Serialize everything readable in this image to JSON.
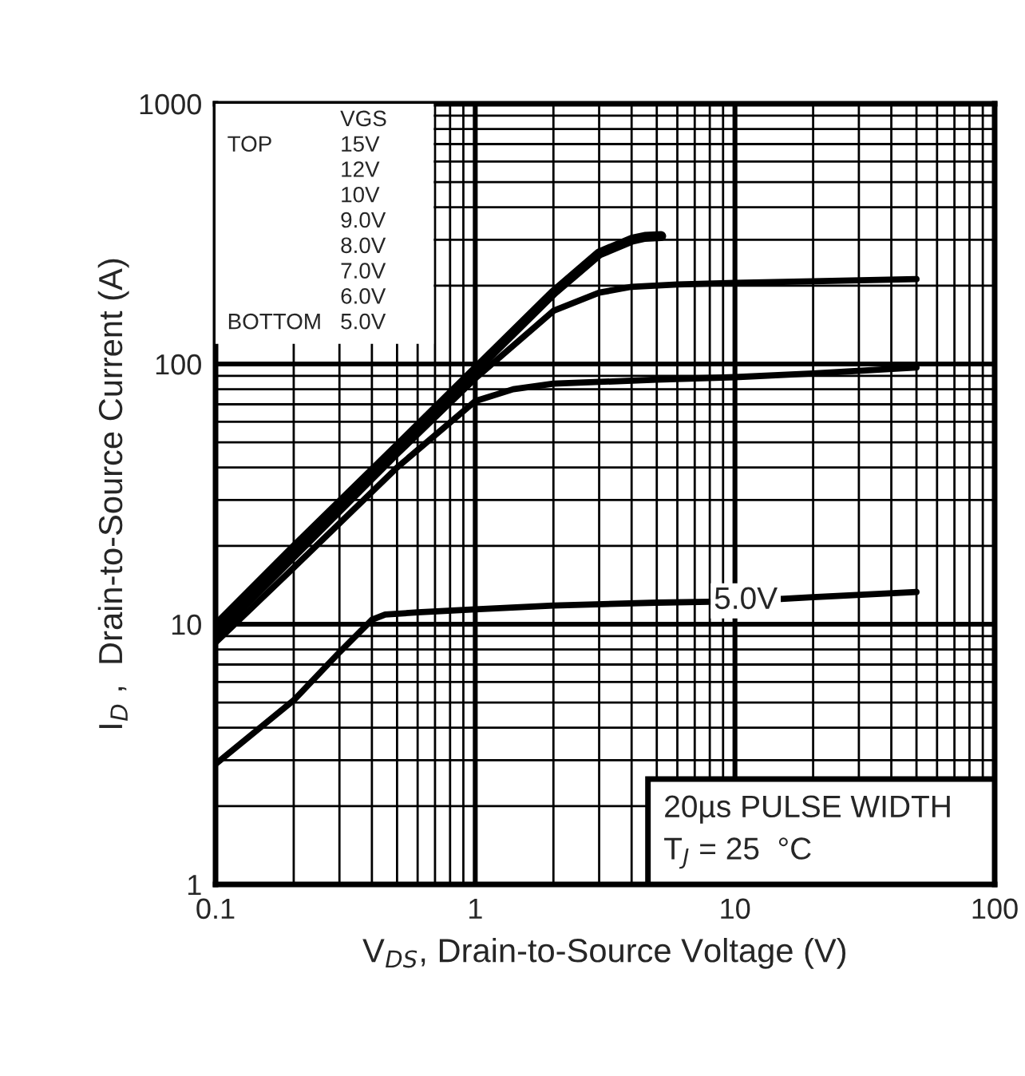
{
  "chart_data": {
    "type": "line",
    "xlabel": "V$_{DS}$, Drain-to-Source Voltage (V)",
    "ylabel": "I$_{D}$ ,  Drain-to-Source Current (A)",
    "series": [
      {
        "color": "#000000",
        "x": [
          0.1,
          0.2,
          0.5,
          1,
          2,
          3,
          4,
          4.5,
          5.2
        ],
        "values": [
          9.8,
          19.6,
          48,
          95,
          188,
          266,
          300,
          308,
          310
        ]
      },
      {
        "color": "#000000",
        "x": [
          0.1,
          0.2,
          0.5,
          1,
          2,
          3,
          4,
          6,
          10,
          20,
          50
        ],
        "values": [
          9,
          18,
          45,
          88,
          160,
          188,
          198,
          202,
          205,
          208,
          212
        ]
      },
      {
        "color": "#000000",
        "x": [
          0.1,
          0.2,
          0.5,
          1,
          1.4,
          2,
          5,
          10,
          20,
          50
        ],
        "values": [
          8.5,
          16.5,
          40,
          72,
          80,
          84,
          87,
          89,
          92,
          97
        ]
      },
      {
        "color": "#000000",
        "x": [
          0.1,
          0.2,
          0.3,
          0.4,
          0.45,
          0.6,
          1,
          2,
          5,
          8,
          10,
          15,
          20,
          50
        ],
        "values": [
          2.9,
          5.1,
          7.8,
          10.4,
          10.9,
          11.1,
          11.4,
          11.8,
          12.1,
          12.2,
          null,
          12.5,
          12.7,
          13.3
        ]
      }
    ],
    "log": "xy",
    "xlim": [
      0.1,
      100
    ],
    "ylim": [
      1,
      1000
    ],
    "xticks": [
      0.1,
      1,
      10,
      100
    ],
    "yticks": [
      1,
      10,
      100,
      1000
    ],
    "grid": true,
    "annotations": [
      "VGS",
      "TOP",
      "15V",
      "12V",
      "10V",
      "9.0V",
      "8.0V",
      "7.0V",
      "6.0V",
      "BOTTOM",
      "5.0V",
      {
        "text": "5.0V",
        "x": 11,
        "y": 12.3
      },
      "20µs PULSE WIDTH",
      "T$_{J}$ = 25  °C"
    ]
  }
}
